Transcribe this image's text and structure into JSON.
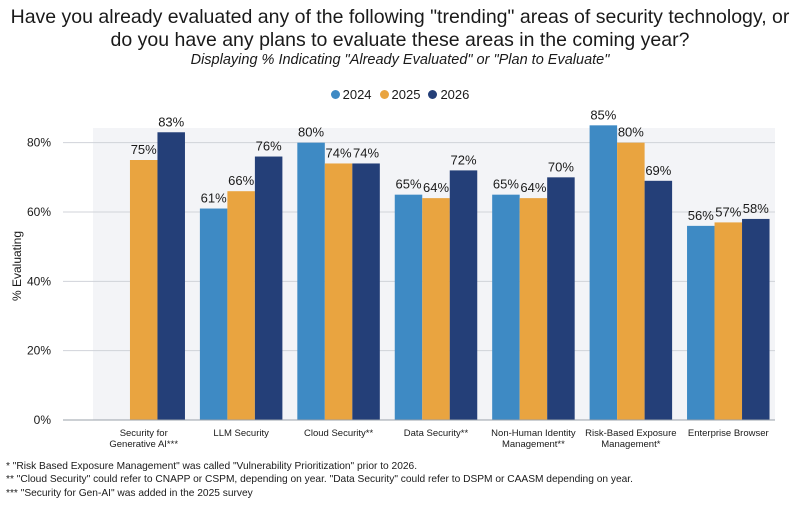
{
  "chart_data": {
    "type": "bar",
    "title": "Have you already evaluated any of the following \"trending\" areas of security technology, or do you have any plans to evaluate these areas in the coming year?",
    "subtitle": "Displaying % Indicating \"Already Evaluated\" or \"Plan to Evaluate\"",
    "ylabel": "% Evaluating",
    "ylim": [
      0,
      90
    ],
    "yticks": [
      0,
      20,
      40,
      60,
      80
    ],
    "ytick_labels": [
      "0%",
      "20%",
      "40%",
      "60%",
      "80%"
    ],
    "grid": true,
    "legend_position": "top-center",
    "categories": [
      [
        "Security for",
        "Generative AI***"
      ],
      [
        "LLM Security"
      ],
      [
        "Cloud Security**"
      ],
      [
        "Data Security**"
      ],
      [
        "Non-Human Identity",
        "Management**"
      ],
      [
        "Risk-Based Exposure",
        "Management*"
      ],
      [
        "Enterprise Browser"
      ]
    ],
    "series": [
      {
        "name": "2024",
        "color": "#3e8ac4",
        "values": [
          null,
          61,
          80,
          65,
          65,
          85,
          56
        ]
      },
      {
        "name": "2025",
        "color": "#e9a440",
        "values": [
          75,
          66,
          74,
          64,
          64,
          80,
          57
        ]
      },
      {
        "name": "2026",
        "color": "#243f78",
        "values": [
          83,
          76,
          74,
          72,
          70,
          69,
          58
        ]
      }
    ]
  },
  "footnotes": [
    "* \"Risk Based Exposure Management\" was called \"Vulnerability Prioritization\" prior to 2026.",
    "** \"Cloud Security\" could refer to CNAPP or CSPM, depending on year. \"Data Security\" could refer to DSPM or CAASM depending on year.",
    "*** \"Security for Gen-AI\" was added in the 2025 survey"
  ]
}
